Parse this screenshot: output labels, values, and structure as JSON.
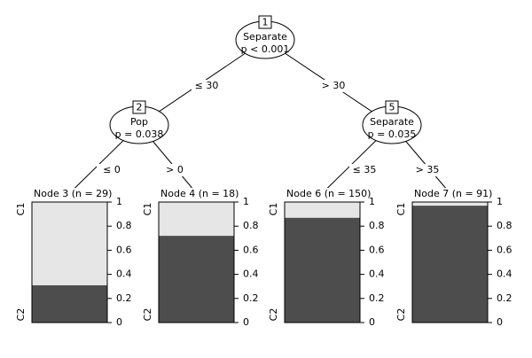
{
  "tree": {
    "classes": [
      "C1",
      "C2"
    ],
    "yticks": [
      0,
      0.2,
      0.4,
      0.6,
      0.8,
      1
    ],
    "ylim": [
      0,
      1
    ],
    "inner_nodes": [
      {
        "id": 1,
        "variable": "Separate",
        "p": "p < 0.001"
      },
      {
        "id": 2,
        "variable": "Pop",
        "p": "p = 0.038"
      },
      {
        "id": 5,
        "variable": "Separate",
        "p": "p = 0.035"
      }
    ],
    "edges": [
      {
        "label": "≤ 30"
      },
      {
        "label": "> 30"
      },
      {
        "label": "≤ 0"
      },
      {
        "label": "> 0"
      },
      {
        "label": "≤ 35"
      },
      {
        "label": "> 35"
      }
    ],
    "terminals": [
      {
        "label": "Node 3 (n = 29)",
        "values": [
          0.69,
          0.31
        ]
      },
      {
        "label": "Node 4 (n = 18)",
        "values": [
          0.28,
          0.72
        ]
      },
      {
        "label": "Node 6 (n = 150)",
        "values": [
          0.13,
          0.87
        ]
      },
      {
        "label": "Node 7 (n = 91)",
        "values": [
          0.03,
          0.97
        ]
      }
    ]
  }
}
